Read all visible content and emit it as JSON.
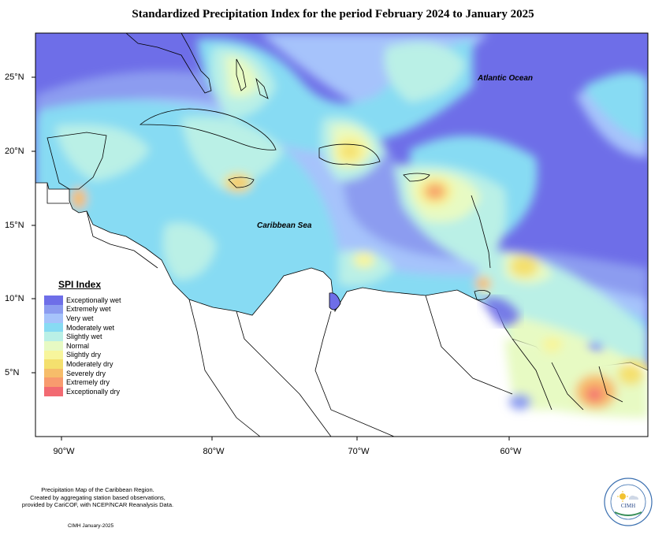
{
  "title": "Standardized Precipitation Index for the period February 2024 to January 2025",
  "labels": {
    "atlantic": "Atlantic Ocean",
    "caribbean": "Caribbean Sea"
  },
  "latitude_ticks": [
    "25°N",
    "20°N",
    "15°N",
    "10°N",
    "5°N"
  ],
  "longitude_ticks": [
    "90°W",
    "80°W",
    "70°W",
    "60°W"
  ],
  "legend": {
    "title": "SPI Index",
    "items": [
      {
        "label": "Exceptionally wet",
        "color": "#6e6ee8"
      },
      {
        "label": "Extremely wet",
        "color": "#8c9cf0"
      },
      {
        "label": "Very wet",
        "color": "#a6c3fb"
      },
      {
        "label": "Moderately wet",
        "color": "#87dbf3"
      },
      {
        "label": "Slightly wet",
        "color": "#baf0e6"
      },
      {
        "label": "Normal",
        "color": "#e7fac3"
      },
      {
        "label": "Slightly dry",
        "color": "#f7f59c"
      },
      {
        "label": "Moderately dry",
        "color": "#f4e06e"
      },
      {
        "label": "Severely dry",
        "color": "#f6bd6a"
      },
      {
        "label": "Extremely dry",
        "color": "#f89b6e"
      },
      {
        "label": "Exceptionally dry",
        "color": "#f26a72"
      }
    ]
  },
  "footer": {
    "line1": "Precipitation Map of the Caribbean Region.",
    "line2": "Created by aggregating station based observations,",
    "line3": "provided by CariCOF, with NCEP/NCAR Reanalysis Data.",
    "credit": "CIMH January-2025"
  },
  "logo": {
    "text": "CIMH"
  }
}
